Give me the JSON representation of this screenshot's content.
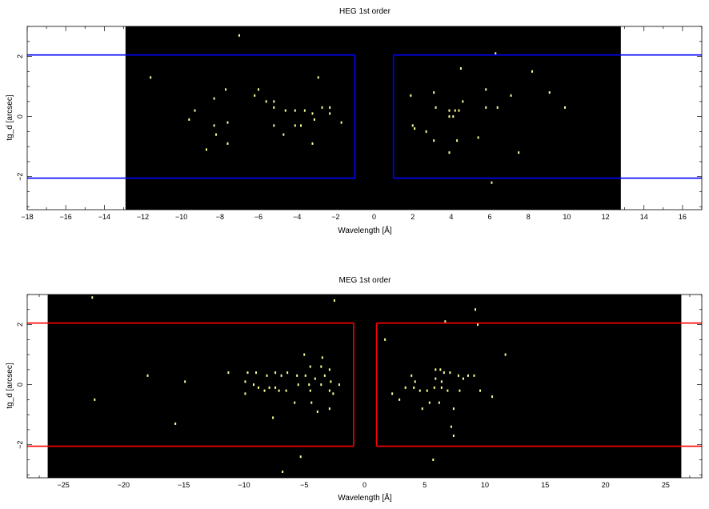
{
  "chart_data": [
    {
      "type": "scatter",
      "title": "HEG 1st order",
      "xlabel": "Wavelength [Å]",
      "ylabel": "tg_d [arcsec]",
      "xlim": [
        -18,
        17
      ],
      "ylim": [
        -3.1,
        3
      ],
      "x_major_ticks": [
        -18,
        -16,
        -14,
        -12,
        -10,
        -8,
        -6,
        -4,
        -2,
        0,
        2,
        4,
        6,
        8,
        10,
        12,
        14,
        16
      ],
      "x_tick_labels": [
        "−18",
        "−16",
        "−14",
        "−12",
        "−10",
        "−8",
        "−6",
        "−4",
        "−2",
        "0",
        "2",
        "4",
        "6",
        "8",
        "10",
        "12",
        "14",
        "16"
      ],
      "y_major_ticks": [
        -2,
        0,
        2
      ],
      "y_tick_labels": [
        "−2",
        "0",
        "2"
      ],
      "grid": false,
      "detector_coverage_x": [
        -12.9,
        12.8
      ],
      "detector_color": "#000000",
      "event_color": "#ffff99",
      "extraction_color": "#0000ff",
      "extraction_regions": [
        {
          "x": [
            -18,
            -1.0
          ],
          "y": [
            -2.05,
            2.05
          ]
        },
        {
          "x": [
            1.0,
            17
          ],
          "y": [
            -2.05,
            2.05
          ]
        }
      ],
      "events": [
        [
          -7,
          2.7
        ],
        [
          6.3,
          2.1
        ],
        [
          -11.6,
          1.3
        ],
        [
          -2.9,
          1.3
        ],
        [
          4.5,
          1.6
        ],
        [
          8.2,
          1.5
        ],
        [
          -9.3,
          0.2
        ],
        [
          -8.3,
          0.6
        ],
        [
          -7.7,
          0.9
        ],
        [
          -6.2,
          0.7
        ],
        [
          -6,
          0.9
        ],
        [
          -5.6,
          0.5
        ],
        [
          -5.2,
          0.5
        ],
        [
          -5.2,
          0.3
        ],
        [
          -4.6,
          0.2
        ],
        [
          -4.1,
          0.2
        ],
        [
          -3.6,
          0.2
        ],
        [
          -3.2,
          0.1
        ],
        [
          -2.7,
          0.3
        ],
        [
          -2.3,
          0.3
        ],
        [
          -2.3,
          0.1
        ],
        [
          -3.1,
          -0.1
        ],
        [
          -9.6,
          -0.1
        ],
        [
          -8.3,
          -0.3
        ],
        [
          -7.6,
          -0.2
        ],
        [
          -5.2,
          -0.3
        ],
        [
          -4.1,
          -0.3
        ],
        [
          -3.8,
          -0.3
        ],
        [
          -1.7,
          -0.2
        ],
        [
          -8.2,
          -0.6
        ],
        [
          -7.6,
          -0.9
        ],
        [
          -4.7,
          -0.6
        ],
        [
          -8.7,
          -1.1
        ],
        [
          -3.2,
          -0.9
        ],
        [
          1.9,
          0.7
        ],
        [
          3.1,
          0.8
        ],
        [
          3.2,
          0.3
        ],
        [
          3.9,
          0.2
        ],
        [
          4.2,
          0.2
        ],
        [
          4.4,
          0.2
        ],
        [
          4.6,
          0.5
        ],
        [
          5.8,
          0.9
        ],
        [
          5.8,
          0.3
        ],
        [
          6.4,
          0.3
        ],
        [
          7.1,
          0.7
        ],
        [
          9.1,
          0.8
        ],
        [
          9.9,
          0.3
        ],
        [
          3.9,
          0
        ],
        [
          4.1,
          0
        ],
        [
          2,
          -0.3
        ],
        [
          2.1,
          -0.4
        ],
        [
          2.7,
          -0.5
        ],
        [
          3.1,
          -0.8
        ],
        [
          4.3,
          -0.8
        ],
        [
          5.4,
          -0.7
        ],
        [
          3.9,
          -1.2
        ],
        [
          7.5,
          -1.2
        ],
        [
          6.1,
          -2.2
        ]
      ]
    },
    {
      "type": "scatter",
      "title": "MEG 1st order",
      "xlabel": "Wavelength [Å]",
      "ylabel": "tg_d [arcsec]",
      "xlim": [
        -28,
        28
      ],
      "ylim": [
        -3.1,
        3
      ],
      "x_major_ticks": [
        -25,
        -20,
        -15,
        -10,
        -5,
        0,
        5,
        10,
        15,
        20,
        25
      ],
      "x_tick_labels": [
        "−25",
        "−20",
        "−15",
        "−10",
        "−5",
        "0",
        "5",
        "10",
        "15",
        "20",
        "25"
      ],
      "y_major_ticks": [
        -2,
        0,
        2
      ],
      "y_tick_labels": [
        "−2",
        "0",
        "2"
      ],
      "grid": false,
      "detector_coverage_x": [
        -26.3,
        26.3
      ],
      "detector_color": "#000000",
      "event_color": "#ffff99",
      "extraction_color": "#ff0000",
      "extraction_regions": [
        {
          "x": [
            -28,
            -0.9
          ],
          "y": [
            -2.05,
            2.05
          ]
        },
        {
          "x": [
            1.0,
            28
          ],
          "y": [
            -2.05,
            2.05
          ]
        }
      ],
      "events": [
        [
          -22.6,
          2.9
        ],
        [
          -2.5,
          2.8
        ],
        [
          9.2,
          2.5
        ],
        [
          6.7,
          2.1
        ],
        [
          9.4,
          2
        ],
        [
          1.7,
          1.5
        ],
        [
          -5,
          1
        ],
        [
          -3.5,
          0.9
        ],
        [
          11.7,
          1
        ],
        [
          -3.6,
          0.6
        ],
        [
          -4.5,
          0.6
        ],
        [
          -2.9,
          0.5
        ],
        [
          -18.0,
          0.3
        ],
        [
          -11.3,
          0.4
        ],
        [
          -9.7,
          0.4
        ],
        [
          -9.0,
          0.4
        ],
        [
          -8.1,
          0.3
        ],
        [
          -7.4,
          0.4
        ],
        [
          -6.9,
          0.3
        ],
        [
          -6.4,
          0.4
        ],
        [
          -5.6,
          0.3
        ],
        [
          -4.9,
          0.3
        ],
        [
          -4.1,
          0.2
        ],
        [
          -3.3,
          0.3
        ],
        [
          -14.9,
          0.1
        ],
        [
          -9.9,
          0.1
        ],
        [
          -9.2,
          0
        ],
        [
          -8.8,
          -0.1
        ],
        [
          -7.9,
          -0.1
        ],
        [
          -7.4,
          -0.1
        ],
        [
          -6.5,
          -0.2
        ],
        [
          -5.5,
          0
        ],
        [
          -4.6,
          0
        ],
        [
          -3.6,
          0
        ],
        [
          -2.8,
          0.1
        ],
        [
          -2.1,
          0
        ],
        [
          -9.9,
          -0.3
        ],
        [
          -8.3,
          -0.2
        ],
        [
          -7.1,
          -0.2
        ],
        [
          -4.5,
          -0.2
        ],
        [
          -2.9,
          -0.2
        ],
        [
          -2.6,
          -0.3
        ],
        [
          -22.4,
          -0.5
        ],
        [
          -5.8,
          -0.6
        ],
        [
          -4.4,
          -0.6
        ],
        [
          -3.9,
          -0.9
        ],
        [
          -2.9,
          -0.8
        ],
        [
          -7.6,
          -1.1
        ],
        [
          -15.7,
          -1.3
        ],
        [
          -5.3,
          -2.4
        ],
        [
          -6.8,
          -2.9
        ],
        [
          3.9,
          0.3
        ],
        [
          4.2,
          0.1
        ],
        [
          5.9,
          0.5
        ],
        [
          6.3,
          0.5
        ],
        [
          6.6,
          0.4
        ],
        [
          7.1,
          0.4
        ],
        [
          7.8,
          0.3
        ],
        [
          8.2,
          0.2
        ],
        [
          8.6,
          0.3
        ],
        [
          9.1,
          0.3
        ],
        [
          5.9,
          0.2
        ],
        [
          6.4,
          0.1
        ],
        [
          2.3,
          -0.3
        ],
        [
          3.4,
          -0.1
        ],
        [
          4.1,
          -0.1
        ],
        [
          4.6,
          -0.2
        ],
        [
          5.2,
          -0.2
        ],
        [
          5.8,
          -0.1
        ],
        [
          6.4,
          -0.1
        ],
        [
          6.9,
          -0.2
        ],
        [
          7.9,
          -0.2
        ],
        [
          9.6,
          -0.2
        ],
        [
          10.6,
          -0.4
        ],
        [
          2.9,
          -0.5
        ],
        [
          4.8,
          -0.8
        ],
        [
          5.4,
          -0.6
        ],
        [
          6.2,
          -0.6
        ],
        [
          7.4,
          -0.8
        ],
        [
          7.2,
          -1.4
        ],
        [
          7.4,
          -1.7
        ],
        [
          5.7,
          -2.5
        ]
      ]
    }
  ]
}
